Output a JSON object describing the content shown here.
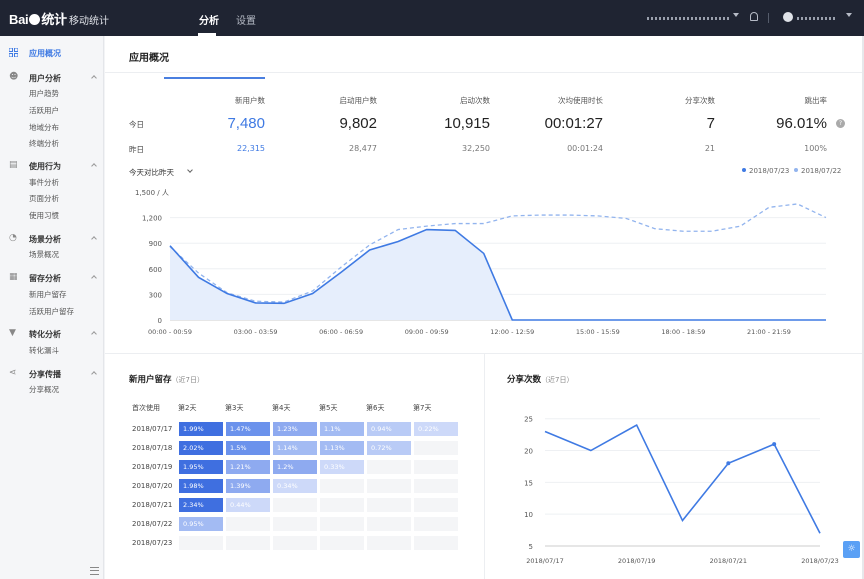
{
  "topbar": {
    "product": "移动统计",
    "nav": [
      {
        "label": "分析"
      },
      {
        "label": "设置"
      }
    ]
  },
  "sidebar": {
    "top": {
      "label": "应用概况"
    },
    "groups": [
      {
        "title": "用户分析",
        "items": [
          "用户趋势",
          "活跃用户",
          "地域分布",
          "终端分析"
        ]
      },
      {
        "title": "使用行为",
        "items": [
          "事件分析",
          "页面分析",
          "使用习惯"
        ]
      },
      {
        "title": "场景分析",
        "items": [
          "场景概况"
        ]
      },
      {
        "title": "留存分析",
        "items": [
          "新用户留存",
          "活跃用户留存"
        ]
      },
      {
        "title": "转化分析",
        "items": [
          "转化漏斗"
        ]
      },
      {
        "title": "分享传播",
        "items": [
          "分享概况"
        ]
      }
    ]
  },
  "page": {
    "title": "应用概况"
  },
  "metrics": {
    "row_today": "今日",
    "row_yesterday": "昨日",
    "columns": [
      {
        "label": "新用户数",
        "today": "7,480",
        "yesterday": "22,315"
      },
      {
        "label": "启动用户数",
        "today": "9,802",
        "yesterday": "28,477"
      },
      {
        "label": "启动次数",
        "today": "10,915",
        "yesterday": "32,250"
      },
      {
        "label": "次均使用时长",
        "today": "00:01:27",
        "yesterday": "00:01:24"
      },
      {
        "label": "分享次数",
        "today": "7",
        "yesterday": "21"
      },
      {
        "label": "跳出率",
        "today": "96.01%",
        "yesterday": "100%"
      }
    ]
  },
  "trend": {
    "compare_label": "今天对比昨天",
    "unit_label": "1,500 / 人",
    "legend": [
      {
        "name": "2018/07/23",
        "color": "#3f7ae3"
      },
      {
        "name": "2018/07/22",
        "color": "#92b4ee"
      }
    ],
    "chart_data": {
      "type": "line",
      "x": [
        "00:00 - 00:59",
        "01:00 - 01:59",
        "02:00 - 02:59",
        "03:00 - 03:59",
        "04:00 - 04:59",
        "05:00 - 05:59",
        "06:00 - 06:59",
        "07:00 - 07:59",
        "08:00 - 08:59",
        "09:00 - 09:59",
        "10:00 - 10:59",
        "11:00 - 11:59",
        "12:00 - 12:59",
        "13:00 - 13:59",
        "14:00 - 14:59",
        "15:00 - 15:59",
        "16:00 - 16:59",
        "17:00 - 17:59",
        "18:00 - 18:59",
        "19:00 - 19:59",
        "20:00 - 20:59",
        "21:00 - 21:59",
        "22:00 - 22:59",
        "23:00 - 23:59"
      ],
      "x_tick_labels": [
        "00:00 - 00:59",
        "03:00 - 03:59",
        "06:00 - 06:59",
        "09:00 - 09:59",
        "12:00 - 12:59",
        "15:00 - 15:59",
        "18:00 - 18:59",
        "21:00 - 21:59"
      ],
      "y_ticks": [
        "0",
        "300",
        "600",
        "900",
        "1,200"
      ],
      "ylim": [
        0,
        1500
      ],
      "series": [
        {
          "name": "2018/07/23",
          "values": [
            870,
            500,
            310,
            200,
            195,
            310,
            560,
            820,
            920,
            1060,
            1050,
            780,
            0,
            0,
            0,
            0,
            0,
            0,
            0,
            0,
            0,
            0,
            0,
            0
          ]
        },
        {
          "name": "2018/07/22",
          "values": [
            860,
            550,
            320,
            220,
            210,
            340,
            620,
            880,
            1060,
            1100,
            1130,
            1130,
            1220,
            1230,
            1230,
            1220,
            1190,
            1070,
            1040,
            1040,
            1100,
            1320,
            1360,
            1200
          ]
        }
      ]
    }
  },
  "retention": {
    "title": "新用户留存",
    "subtitle": "（近7日）",
    "headers": [
      "首次使用",
      "第2天",
      "第3天",
      "第4天",
      "第5天",
      "第6天",
      "第7天"
    ],
    "rows": [
      {
        "date": "2018/07/17",
        "values": [
          "1.99%",
          "1.47%",
          "1.23%",
          "1.1%",
          "0.94%",
          "0.22%"
        ]
      },
      {
        "date": "2018/07/18",
        "values": [
          "2.02%",
          "1.5%",
          "1.14%",
          "1.13%",
          "0.72%"
        ]
      },
      {
        "date": "2018/07/19",
        "values": [
          "1.95%",
          "1.21%",
          "1.2%",
          "0.33%"
        ]
      },
      {
        "date": "2018/07/20",
        "values": [
          "1.98%",
          "1.39%",
          "0.34%"
        ]
      },
      {
        "date": "2018/07/21",
        "values": [
          "2.34%",
          "0.44%"
        ]
      },
      {
        "date": "2018/07/22",
        "values": [
          "0.95%"
        ]
      },
      {
        "date": "2018/07/23",
        "values": []
      }
    ]
  },
  "share": {
    "title": "分享次数",
    "subtitle": "（近7日）",
    "chart_data": {
      "type": "line",
      "x": [
        "2018/07/17",
        "2018/07/18",
        "2018/07/19",
        "2018/07/20",
        "2018/07/21",
        "2018/07/22",
        "2018/07/23"
      ],
      "x_tick_labels": [
        "2018/07/17",
        "2018/07/19",
        "2018/07/21",
        "2018/07/23"
      ],
      "y_ticks": [
        "5",
        "10",
        "15",
        "20",
        "25"
      ],
      "ylim": [
        5,
        27
      ],
      "series": [
        {
          "values": [
            23,
            20,
            24,
            9,
            18,
            21,
            7
          ]
        }
      ]
    }
  }
}
